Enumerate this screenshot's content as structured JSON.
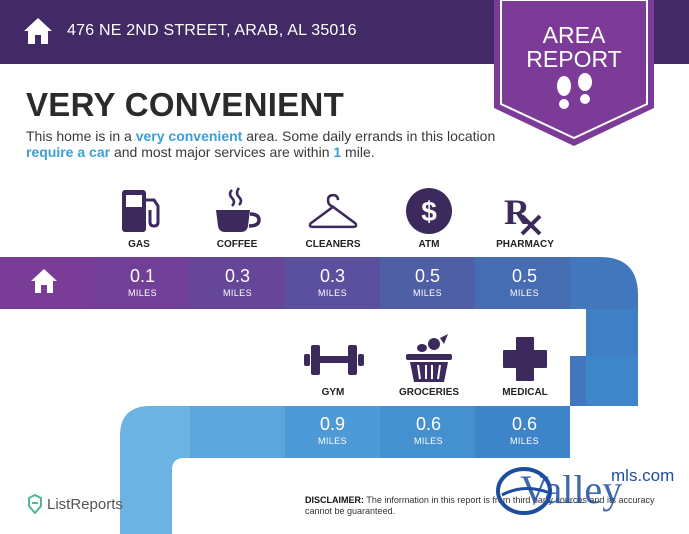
{
  "header": {
    "address": "476 NE 2ND STREET, ARAB, AL 35016",
    "icon": "home-icon",
    "badge_line1": "AREA",
    "badge_line2": "REPORT",
    "badge_icon": "footsteps-icon"
  },
  "title": "VERY CONVENIENT",
  "description": {
    "p1": "This home is in a ",
    "h1": "very convenient",
    "p2": " area. Some daily errands in this location ",
    "h2": "require a car",
    "p3": " and most major services are within ",
    "h3": "1",
    "p4": " mile."
  },
  "row1": [
    {
      "label": "GAS",
      "icon": "gas-pump-icon",
      "value": "0.1",
      "unit": "MILES"
    },
    {
      "label": "COFFEE",
      "icon": "coffee-cup-icon",
      "value": "0.3",
      "unit": "MILES"
    },
    {
      "label": "CLEANERS",
      "icon": "hanger-icon",
      "value": "0.3",
      "unit": "MILES"
    },
    {
      "label": "ATM",
      "icon": "dollar-icon",
      "value": "0.5",
      "unit": "MILES"
    },
    {
      "label": "PHARMACY",
      "icon": "rx-icon",
      "value": "0.5",
      "unit": "MILES"
    }
  ],
  "row2": [
    {
      "label": "GYM",
      "icon": "dumbbell-icon",
      "value": "0.9",
      "unit": "MILES"
    },
    {
      "label": "GROCERIES",
      "icon": "grocery-basket-icon",
      "value": "0.6",
      "unit": "MILES"
    },
    {
      "label": "MEDICAL",
      "icon": "medical-cross-icon",
      "value": "0.6",
      "unit": "MILES"
    }
  ],
  "footer": {
    "brand": "ListReports",
    "disclaimer_label": "DISCLAIMER:",
    "disclaimer_text": " The information in this report is from third party sources and its accuracy cannot be guaranteed."
  },
  "watermark": {
    "main": "Valley",
    "sub": "mls.com"
  },
  "colors": {
    "header": "#422a67",
    "badge": "#7b3b96",
    "highlight": "#3a9fd6",
    "row_start": "#7a3d97",
    "row_end": "#3d8ccd"
  }
}
